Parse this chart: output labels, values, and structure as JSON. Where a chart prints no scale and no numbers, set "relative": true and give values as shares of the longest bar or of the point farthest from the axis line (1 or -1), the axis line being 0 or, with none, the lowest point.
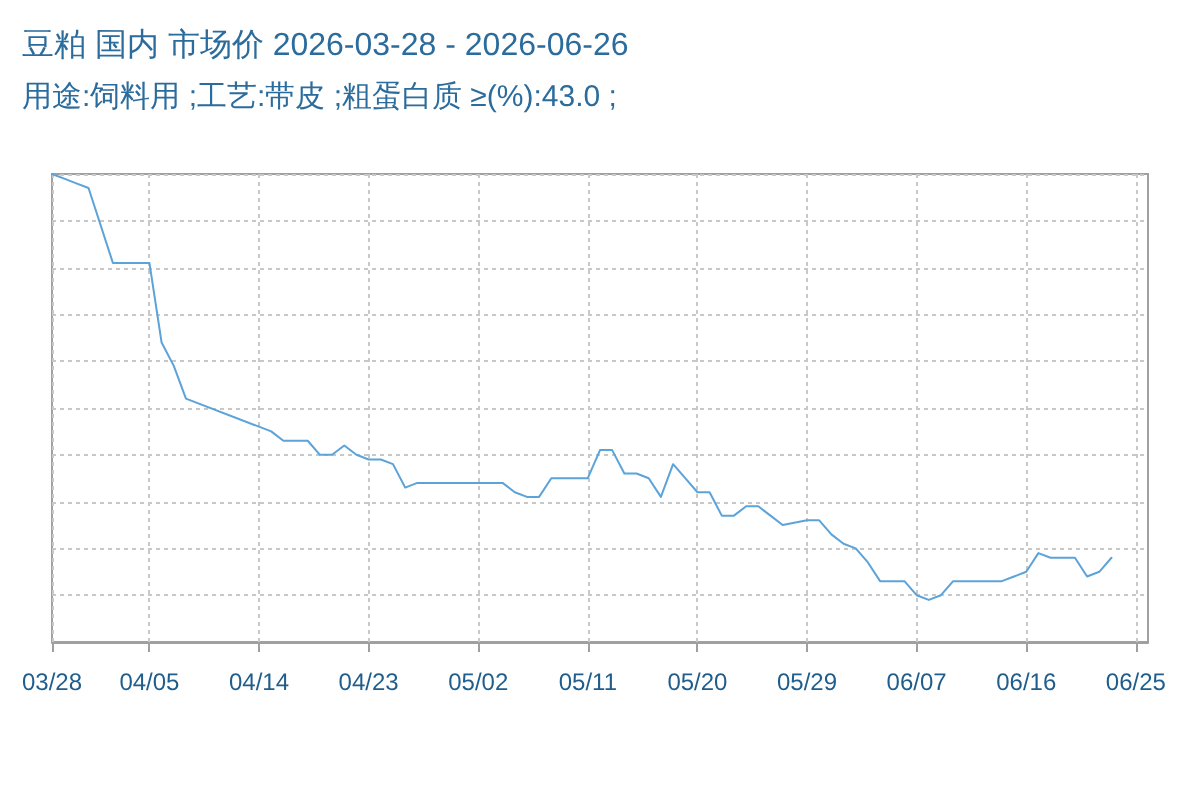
{
  "chart_data": {
    "type": "line",
    "title": "豆粕 国内 市场价 2026-03-28 - 2026-06-26",
    "subtitle": "用途:饲料用 ;工艺:带皮 ;粗蛋白质 ≥(%):43.0 ;",
    "relative": true,
    "x": [
      "2026-03-28",
      "2026-03-29",
      "2026-03-30",
      "2026-03-31",
      "2026-04-02",
      "2026-04-05",
      "2026-04-06",
      "2026-04-07",
      "2026-04-08",
      "2026-04-15",
      "2026-04-16",
      "2026-04-18",
      "2026-04-19",
      "2026-04-20",
      "2026-04-21",
      "2026-04-22",
      "2026-04-23",
      "2026-04-24",
      "2026-04-25",
      "2026-04-26",
      "2026-04-27",
      "2026-05-04",
      "2026-05-05",
      "2026-05-06",
      "2026-05-07",
      "2026-05-08",
      "2026-05-11",
      "2026-05-12",
      "2026-05-13",
      "2026-05-14",
      "2026-05-15",
      "2026-05-16",
      "2026-05-17",
      "2026-05-18",
      "2026-05-19",
      "2026-05-20",
      "2026-05-21",
      "2026-05-22",
      "2026-05-23",
      "2026-05-24",
      "2026-05-25",
      "2026-05-26",
      "2026-05-27",
      "2026-05-29",
      "2026-05-30",
      "2026-05-31",
      "2026-06-01",
      "2026-06-02",
      "2026-06-03",
      "2026-06-04",
      "2026-06-06",
      "2026-06-07",
      "2026-06-08",
      "2026-06-09",
      "2026-06-10",
      "2026-06-12",
      "2026-06-14",
      "2026-06-15",
      "2026-06-16",
      "2026-06-17",
      "2026-06-18",
      "2026-06-20",
      "2026-06-21",
      "2026-06-22",
      "2026-06-23"
    ],
    "series": [
      {
        "color": "#5ba3d9",
        "values": [
          1.0,
          0.99,
          0.98,
          0.97,
          0.81,
          0.81,
          0.64,
          0.59,
          0.52,
          0.45,
          0.43,
          0.43,
          0.4,
          0.4,
          0.42,
          0.4,
          0.39,
          0.39,
          0.38,
          0.33,
          0.34,
          0.34,
          0.32,
          0.31,
          0.31,
          0.35,
          0.35,
          0.41,
          0.41,
          0.36,
          0.36,
          0.35,
          0.31,
          0.38,
          0.35,
          0.32,
          0.32,
          0.27,
          0.27,
          0.29,
          0.29,
          0.27,
          0.25,
          0.26,
          0.26,
          0.23,
          0.21,
          0.2,
          0.17,
          0.13,
          0.13,
          0.1,
          0.09,
          0.1,
          0.13,
          0.13,
          0.13,
          0.14,
          0.15,
          0.19,
          0.18,
          0.18,
          0.14,
          0.15,
          0.18
        ]
      }
    ],
    "xlim": [
      "2026-03-28",
      "2026-06-26"
    ],
    "xticks": [
      {
        "value": "2026-03-28",
        "label": "03/28"
      },
      {
        "value": "2026-04-05",
        "label": "04/05"
      },
      {
        "value": "2026-04-14",
        "label": "04/14"
      },
      {
        "value": "2026-04-23",
        "label": "04/23"
      },
      {
        "value": "2026-05-02",
        "label": "05/02"
      },
      {
        "value": "2026-05-11",
        "label": "05/11"
      },
      {
        "value": "2026-05-20",
        "label": "05/20"
      },
      {
        "value": "2026-05-29",
        "label": "05/29"
      },
      {
        "value": "2026-06-07",
        "label": "06/07"
      },
      {
        "value": "2026-06-16",
        "label": "06/16"
      },
      {
        "value": "2026-06-25",
        "label": "06/25"
      }
    ],
    "grid": true,
    "marker": "none"
  }
}
